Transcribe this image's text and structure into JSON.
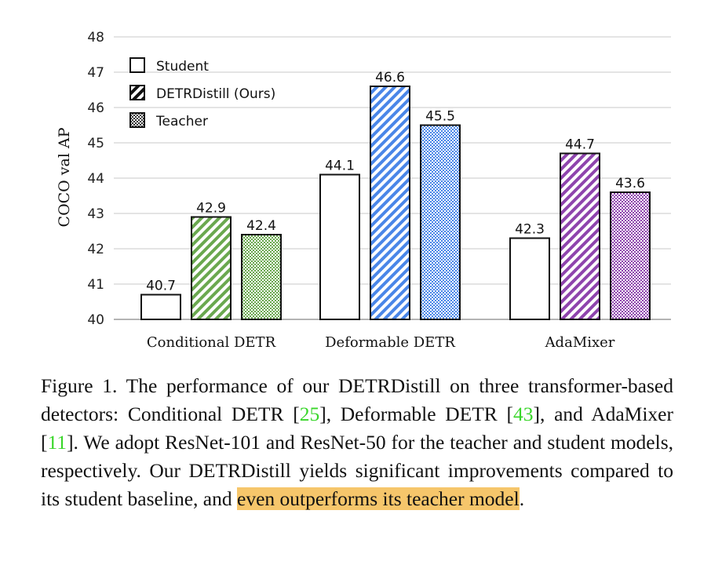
{
  "chart_data": {
    "type": "bar",
    "categories": [
      "Conditional DETR",
      "Deformable DETR",
      "AdaMixer"
    ],
    "series": [
      {
        "name": "Student",
        "values": [
          40.7,
          44.1,
          42.3
        ],
        "style": "white"
      },
      {
        "name": "DETRDistill (Ours)",
        "values": [
          42.9,
          46.6,
          44.7
        ],
        "style": "diagonal-stripes"
      },
      {
        "name": "Teacher",
        "values": [
          42.4,
          45.5,
          43.6
        ],
        "style": "checker"
      }
    ],
    "group_colors": [
      "#6aa84f",
      "#4a86e8",
      "#8e44ad"
    ],
    "ylabel": "COCO val AP",
    "ylim": [
      40,
      48
    ],
    "yticks": [
      40,
      41,
      42,
      43,
      44,
      45,
      46,
      47,
      48
    ],
    "grid": true,
    "legend_position": "top-left"
  },
  "caption": {
    "prefix": "Figure 1. The performance of our DETRDistill on three transformer-based detectors: Conditional DETR [",
    "ref1": "25",
    "mid1": "], Deformable DETR [",
    "ref2": "43",
    "mid2": "], and AdaMixer [",
    "ref3": "11",
    "mid3": "]. We adopt ResNet-101 and ResNet-50 for the teacher and student models, respectively. Our DETRDistill yields significant improvements compared to its student baseline, and ",
    "highlight": "even outperforms its teacher model",
    "suffix": "."
  }
}
